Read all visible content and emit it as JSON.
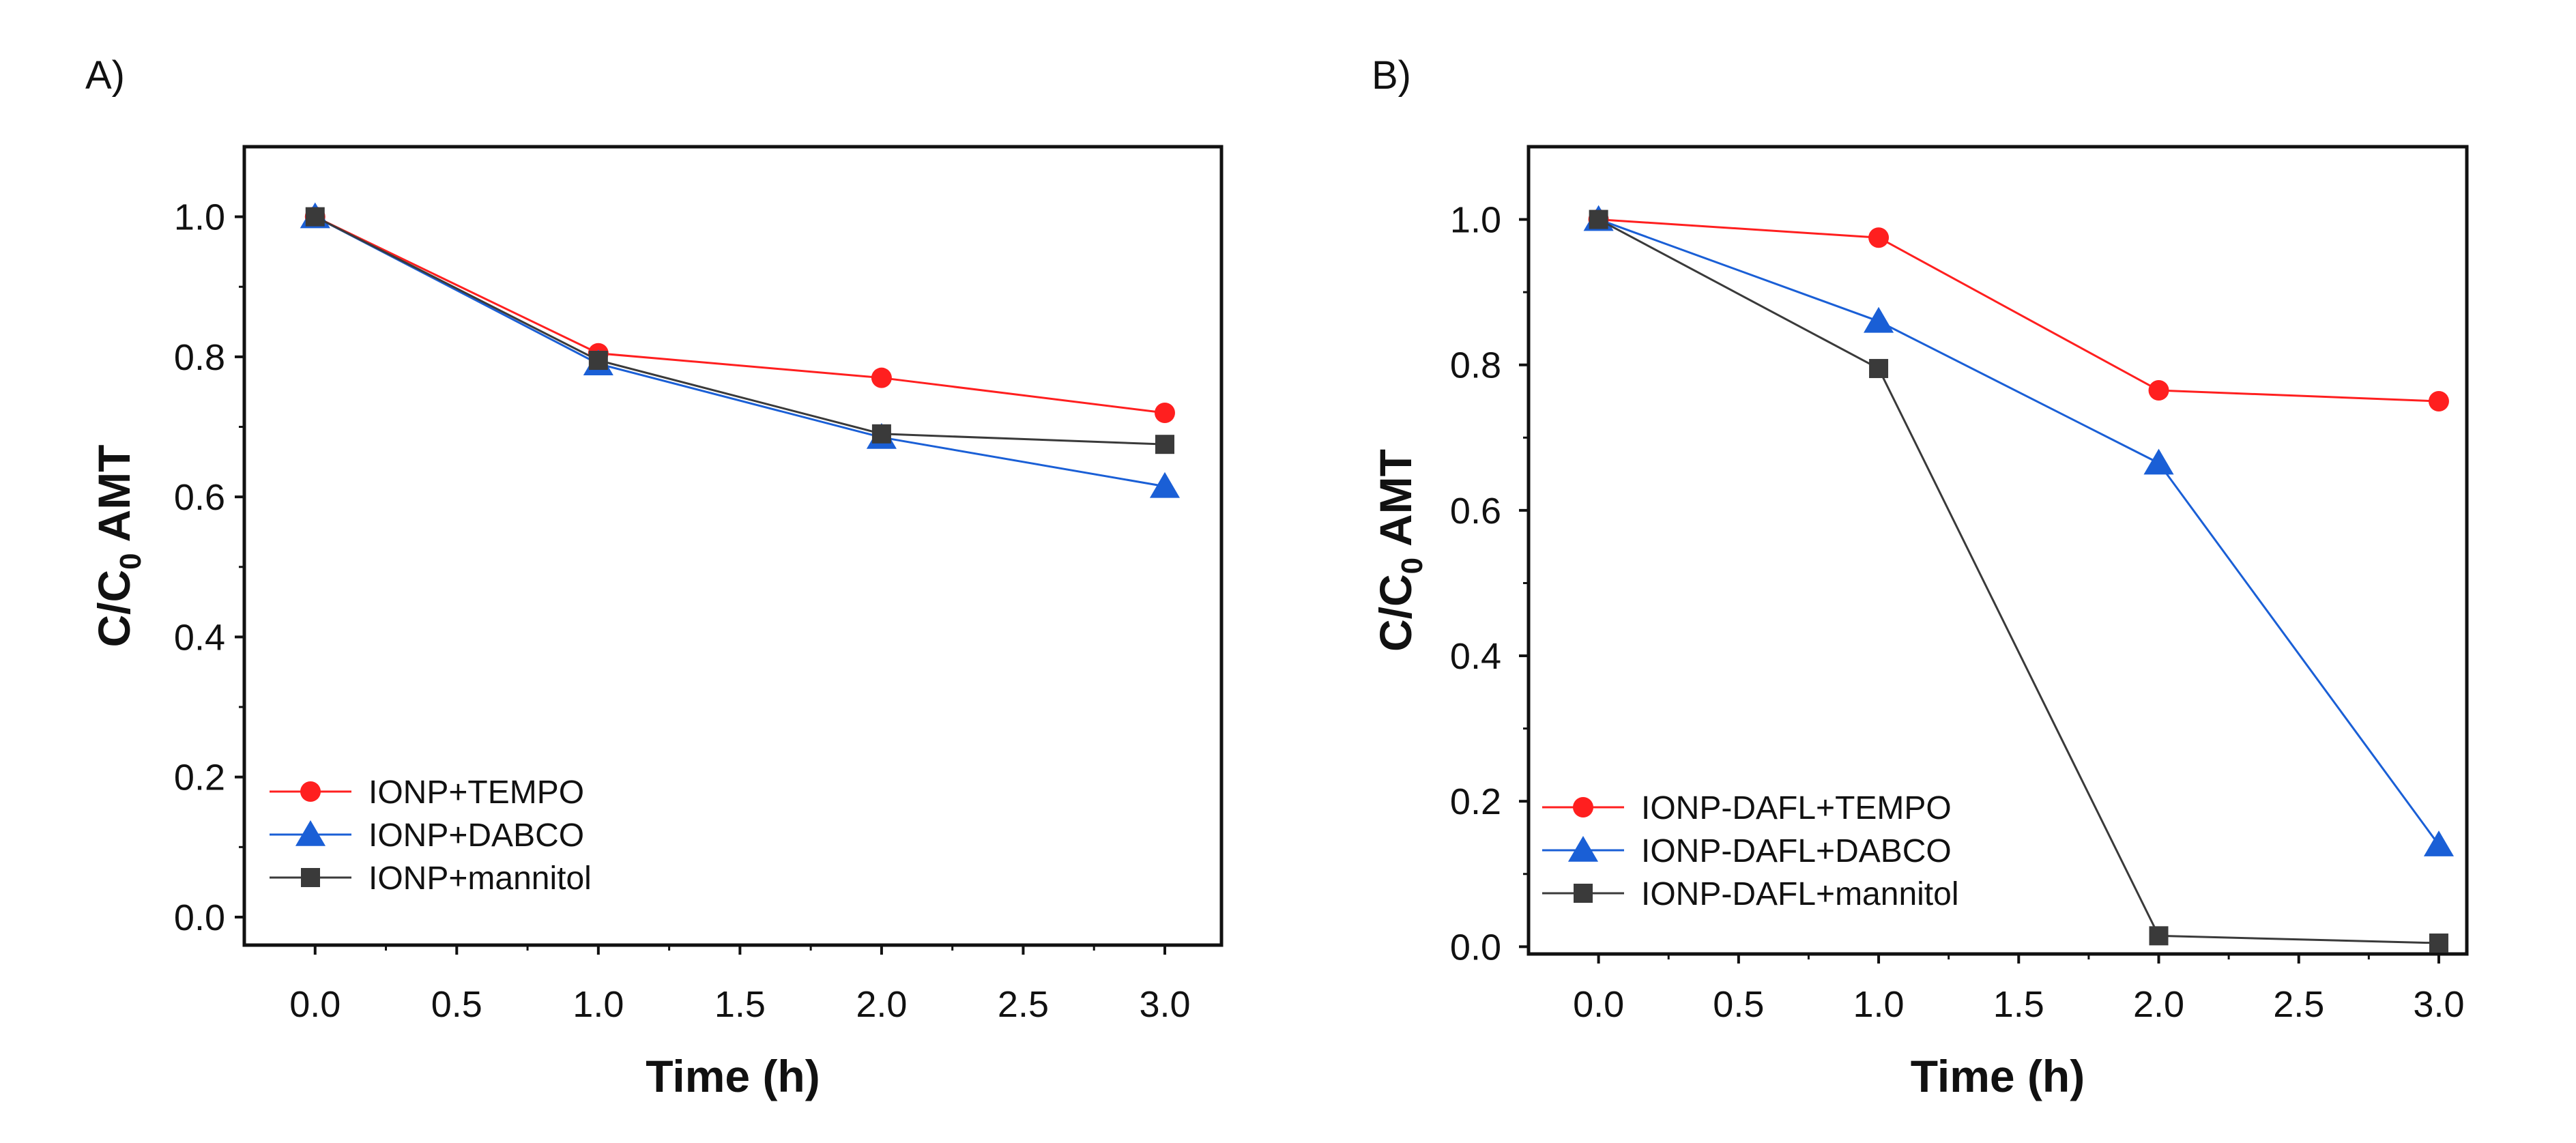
{
  "chart_data": [
    {
      "panel_label": "A)",
      "type": "line",
      "x": [
        0,
        1,
        2,
        3
      ],
      "xlabel": "Time (h)",
      "ylabel_main": "C/C",
      "ylabel_sub": "0",
      "ylabel_tail": " AMT",
      "xlim": [
        -0.25,
        3.2
      ],
      "ylim": [
        -0.04,
        1.1
      ],
      "xticks": [
        "0.0",
        "0.5",
        "1.0",
        "1.5",
        "2.0",
        "2.5",
        "3.0"
      ],
      "yticks": [
        "0.0",
        "0.2",
        "0.4",
        "0.6",
        "0.8",
        "1.0"
      ],
      "legend_position": "lower-left",
      "series": [
        {
          "name": "IONP+TEMPO",
          "marker": "circle",
          "color": "#ff1f1f",
          "values": [
            1.0,
            0.805,
            0.77,
            0.72
          ]
        },
        {
          "name": "IONP+DABCO",
          "marker": "triangle",
          "color": "#1a5fd6",
          "values": [
            1.0,
            0.79,
            0.685,
            0.615
          ]
        },
        {
          "name": "IONP+mannitol",
          "marker": "square",
          "color": "#3a3a3a",
          "values": [
            1.0,
            0.795,
            0.69,
            0.675
          ]
        }
      ]
    },
    {
      "panel_label": "B)",
      "type": "line",
      "x": [
        0,
        1,
        2,
        3
      ],
      "xlabel": "Time (h)",
      "ylabel_main": "C/C",
      "ylabel_sub": "0",
      "ylabel_tail": " AMT",
      "xlim": [
        -0.25,
        3.1
      ],
      "ylim": [
        -0.01,
        1.1
      ],
      "xticks": [
        "0.0",
        "0.5",
        "1.0",
        "1.5",
        "2.0",
        "2.5",
        "3.0"
      ],
      "yticks": [
        "0.0",
        "0.2",
        "0.4",
        "0.6",
        "0.8",
        "1.0"
      ],
      "legend_position": "lower-left",
      "series": [
        {
          "name": "IONP-DAFL+TEMPO",
          "marker": "circle",
          "color": "#ff1f1f",
          "values": [
            1.0,
            0.975,
            0.765,
            0.75
          ]
        },
        {
          "name": "IONP-DAFL+DABCO",
          "marker": "triangle",
          "color": "#1a5fd6",
          "values": [
            1.0,
            0.86,
            0.665,
            0.14
          ]
        },
        {
          "name": "IONP-DAFL+mannitol",
          "marker": "square",
          "color": "#3a3a3a",
          "values": [
            1.0,
            0.795,
            0.015,
            0.005
          ]
        }
      ]
    }
  ]
}
